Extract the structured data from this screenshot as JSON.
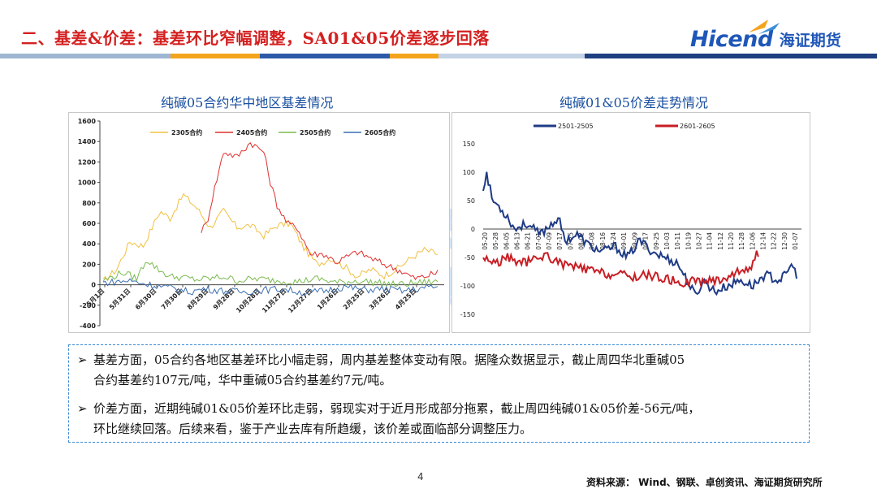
{
  "header": {
    "title": "二、基差&价差：基差环比窄幅调整，SA01&05价差逐步回落",
    "logo_wordmark": "Hicend",
    "logo_cn": "海证期货",
    "band_colors": [
      "#9fb6d3",
      "#f3a31c",
      "#2d5aa8",
      "#f3a31c",
      "#c4d3e6",
      "#1e3f80"
    ]
  },
  "left_chart": {
    "title": "纯碱05合约华中地区基差情况",
    "chart_data": {
      "type": "line",
      "title": "纯碱05合约华中地区基差情况",
      "legend": [
        "2305合约",
        "2405合约",
        "2505合约",
        "2605合约"
      ],
      "series_colors": [
        "#f0c040",
        "#e03030",
        "#7bbb50",
        "#3d6fb0"
      ],
      "y_ticks": [
        "1600",
        "1400",
        "1200",
        "1000",
        "800",
        "600",
        "400",
        "200",
        "0",
        "-200",
        "-400"
      ],
      "x_ticks": [
        "5月1日",
        "5月31日",
        "6月30日",
        "7月30日",
        "8月29日",
        "9月28日",
        "10月28日",
        "11月27日",
        "12月27日",
        "1月26日",
        "2月25日",
        "3月26日",
        "4月25日"
      ],
      "ylim": [
        -400,
        1600
      ]
    }
  },
  "right_chart": {
    "title": "纯碱01&05价差走势情况",
    "chart_data": {
      "type": "line",
      "title": "纯碱01&05价差走势情况",
      "legend": [
        "2501-2505",
        "2601-2605"
      ],
      "series_colors": [
        "#1f3b86",
        "#c81e24"
      ],
      "y_ticks": [
        "150",
        "100",
        "50",
        "0",
        "-50",
        "-100",
        "-150"
      ],
      "x_ticks": [
        "05-20",
        "05-28",
        "06-05",
        "06-13",
        "06-21",
        "07-01",
        "07-09",
        "07-17",
        "07-25",
        "08-02",
        "08-08",
        "08-16",
        "08-24",
        "09-01",
        "09-09",
        "09-17",
        "09-25",
        "10-03",
        "10-11",
        "10-19",
        "10-27",
        "11-04",
        "11-12",
        "11-20",
        "11-28",
        "12-06",
        "12-14",
        "12-22",
        "12-30",
        "01-07"
      ],
      "ylim": [
        -150,
        150
      ]
    }
  },
  "notes": {
    "line1": "基差方面，05合约各地区基差环比小幅走弱，周内基差整体变动有限。据隆众数据显示，截止周四华北重碱05",
    "line2": "合约基差约107元/吨，华中重碱05合约基差约7元/吨。",
    "line3": "价差方面，近期纯碱01&05价差环比走弱，弱现实对于近月形成部分拖累，截止周四纯碱01&05价差-56元/吨，",
    "line4": "环比继续回落。后续来看，鉴于产业去库有所趋缓，该价差或面临部分调整压力。",
    "bullet": "➢"
  },
  "footer": {
    "page": "4",
    "source": "资料来源：  Wind、钢联、卓创资讯、海证期货研究所"
  },
  "watermark": {
    "wordmark": "Hicend",
    "cn": "海证期货"
  }
}
